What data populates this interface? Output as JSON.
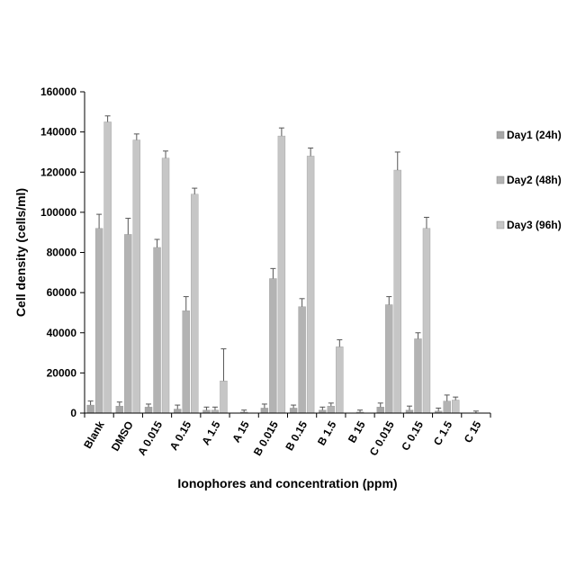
{
  "chart_data": {
    "type": "bar",
    "title": "",
    "xlabel": "Ionophores and concentration (ppm)",
    "ylabel": "Cell density (cells/ml)",
    "ylim": [
      0,
      160000
    ],
    "yticks": [
      0,
      20000,
      40000,
      60000,
      80000,
      100000,
      120000,
      140000,
      160000
    ],
    "legend_position": "right",
    "grid": false,
    "categories": [
      "Blank",
      "DMSO",
      "A 0.015",
      "A 0.15",
      "A 1.5",
      "A 15",
      "B 0.015",
      "B 0.15",
      "B 1.5",
      "B 15",
      "C 0.015",
      "C 0.15",
      "C 1.5",
      "C 15"
    ],
    "series": [
      {
        "name": "Day1 (24h)",
        "color": "#a6a6a6",
        "values": [
          4000,
          3500,
          3000,
          2000,
          1500,
          0,
          2500,
          2500,
          1500,
          0,
          3000,
          1500,
          1000,
          0
        ],
        "errors": [
          2000,
          2000,
          1500,
          2000,
          1500,
          0,
          2000,
          1500,
          1500,
          0,
          2000,
          2000,
          1500,
          0
        ]
      },
      {
        "name": "Day2 (48h)",
        "color": "#b3b3b3",
        "values": [
          92000,
          89000,
          82500,
          51000,
          1500,
          500,
          67000,
          53000,
          3500,
          500,
          54000,
          37000,
          6000,
          0
        ],
        "errors": [
          7000,
          8000,
          4000,
          7000,
          1500,
          1000,
          5000,
          4000,
          1500,
          1000,
          4000,
          3000,
          3000,
          1000
        ]
      },
      {
        "name": "Day3 (96h)",
        "color": "#c6c6c6",
        "values": [
          145000,
          136000,
          127000,
          109000,
          16000,
          0,
          138000,
          128000,
          33000,
          0,
          121000,
          92000,
          6500,
          0
        ],
        "errors": [
          3000,
          3000,
          3500,
          3000,
          16000,
          0,
          4000,
          4000,
          3500,
          0,
          9000,
          5500,
          1500,
          0
        ]
      }
    ]
  }
}
